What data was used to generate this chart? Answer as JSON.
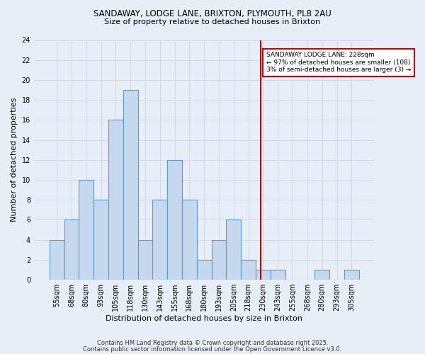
{
  "title1": "SANDAWAY, LODGE LANE, BRIXTON, PLYMOUTH, PL8 2AU",
  "title2": "Size of property relative to detached houses in Brixton",
  "xlabel": "Distribution of detached houses by size in Brixton",
  "ylabel": "Number of detached properties",
  "categories": [
    "55sqm",
    "68sqm",
    "80sqm",
    "93sqm",
    "105sqm",
    "118sqm",
    "130sqm",
    "143sqm",
    "155sqm",
    "168sqm",
    "180sqm",
    "193sqm",
    "205sqm",
    "218sqm",
    "230sqm",
    "243sqm",
    "255sqm",
    "268sqm",
    "280sqm",
    "293sqm",
    "305sqm"
  ],
  "values": [
    4,
    6,
    10,
    8,
    16,
    19,
    4,
    8,
    12,
    8,
    2,
    4,
    6,
    2,
    1,
    1,
    0,
    0,
    1,
    0,
    1
  ],
  "bar_color": "#c5d8ed",
  "bar_edge_color": "#5b9bd5",
  "bar_linewidth": 0.8,
  "grid_color": "#d0d8e8",
  "background_color": "#e8eef8",
  "red_line_x": 13.85,
  "red_line_color": "#cc0000",
  "annotation_title": "SANDAWAY LODGE LANE: 228sqm",
  "annotation_line1": "← 97% of detached houses are smaller (108)",
  "annotation_line2": "3% of semi-detached houses are larger (3) →",
  "annotation_box_color": "#ffffff",
  "annotation_edge_color": "#cc0000",
  "footer1": "Contains HM Land Registry data © Crown copyright and database right 2025.",
  "footer2": "Contains public sector information licensed under the Open Government Licence v3.0.",
  "ylim": [
    0,
    24
  ],
  "yticks": [
    0,
    2,
    4,
    6,
    8,
    10,
    12,
    14,
    16,
    18,
    20,
    22,
    24
  ],
  "title_fontsize": 8.5,
  "subtitle_fontsize": 8.0,
  "axis_label_fontsize": 8.0,
  "tick_fontsize": 7.0,
  "annotation_fontsize": 6.5,
  "footer_fontsize": 6.0
}
